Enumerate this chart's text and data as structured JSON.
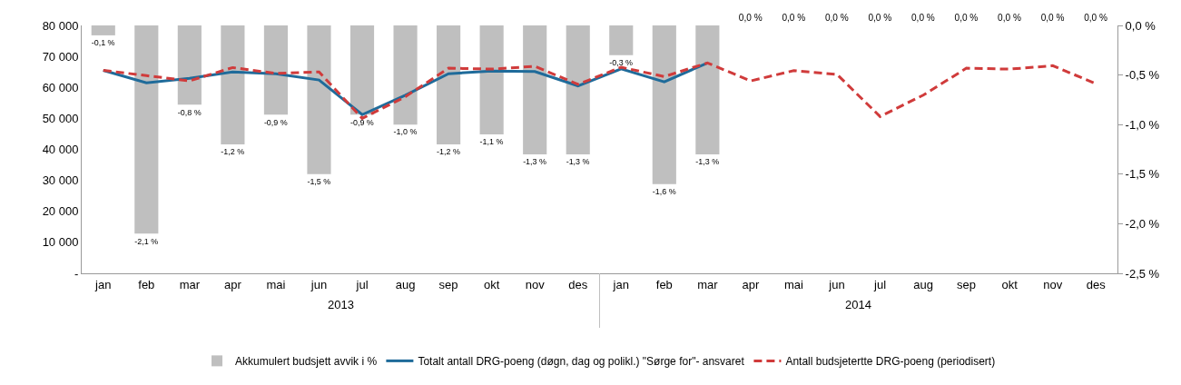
{
  "chart_data": {
    "type": "bar",
    "categories": [
      "jan",
      "feb",
      "mar",
      "apr",
      "mai",
      "jun",
      "jul",
      "aug",
      "sep",
      "okt",
      "nov",
      "des",
      "jan",
      "feb",
      "mar",
      "apr",
      "mai",
      "jun",
      "jul",
      "aug",
      "sep",
      "okt",
      "nov",
      "des"
    ],
    "series": [
      {
        "name": "Akkumulert budsjett avvik i %",
        "axis": "y2",
        "color": "#bfbfbf",
        "values": [
          -0.1,
          -2.1,
          -0.8,
          -1.2,
          -0.9,
          -1.5,
          -0.9,
          -1.0,
          -1.2,
          -1.1,
          -1.3,
          -1.3,
          -0.3,
          -1.6,
          -1.3,
          0.0,
          0.0,
          0.0,
          0.0,
          0.0,
          0.0,
          0.0,
          0.0,
          0.0
        ],
        "value_labels": [
          "-0,1 %",
          "-2,1 %",
          "-0,8 %",
          "-1,2 %",
          "-0,9 %",
          "-1,5 %",
          "-0,9 %",
          "-1,0 %",
          "-1,2 %",
          "-1,1 %",
          "-1,3 %",
          "-1,3 %",
          "-0,3 %",
          "-1,6 %",
          "-1,3 %",
          "0,0 %",
          "0,0 %",
          "0,0 %",
          "0,0 %",
          "0,0 %",
          "0,0 %",
          "0,0 %",
          "0,0 %",
          "0,0 %"
        ]
      },
      {
        "name": "Totalt antall DRG-poeng (døgn, dag og polikl.) \"Sørge for\"- ansvaret",
        "type": "line",
        "line_style": "solid",
        "color": "#1f6b9a",
        "values": [
          65500,
          61500,
          62900,
          65000,
          64400,
          62400,
          51200,
          57500,
          64400,
          65300,
          65100,
          60500,
          66000,
          61800,
          67900,
          null,
          null,
          null,
          null,
          null,
          null,
          null,
          null,
          null
        ]
      },
      {
        "name": "Antall budsjetertte DRG-poeng (periodisert)",
        "type": "line",
        "line_style": "dashed",
        "color": "#d03b3b",
        "values": [
          65500,
          63800,
          62100,
          66400,
          64500,
          65000,
          50000,
          57000,
          66200,
          65900,
          66800,
          61000,
          66500,
          63500,
          67900,
          62100,
          65400,
          64200,
          50600,
          57500,
          66200,
          65900,
          67000,
          61200
        ]
      }
    ],
    "annotations": [
      "2013",
      "2014"
    ],
    "ylim": [
      0,
      80000
    ],
    "yticks": [
      {
        "value": 0,
        "label": "-"
      },
      {
        "value": 10000,
        "label": "10 000"
      },
      {
        "value": 20000,
        "label": "20 000"
      },
      {
        "value": 30000,
        "label": "30 000"
      },
      {
        "value": 40000,
        "label": "40 000"
      },
      {
        "value": 50000,
        "label": "50 000"
      },
      {
        "value": 60000,
        "label": "60 000"
      },
      {
        "value": 70000,
        "label": "70 000"
      },
      {
        "value": 80000,
        "label": "80 000"
      }
    ],
    "y2lim": [
      -2.5,
      0
    ],
    "y2ticks": [
      {
        "value": -2.5,
        "label": "-2,5 %"
      },
      {
        "value": -2.0,
        "label": "-2,0 %"
      },
      {
        "value": -1.5,
        "label": "-1,5 %"
      },
      {
        "value": -1.0,
        "label": "-1,0 %"
      },
      {
        "value": -0.5,
        "label": "-0,5 %"
      },
      {
        "value": 0,
        "label": "0,0 %"
      }
    ],
    "grid": false,
    "marker": "none",
    "legend": "bottom"
  }
}
